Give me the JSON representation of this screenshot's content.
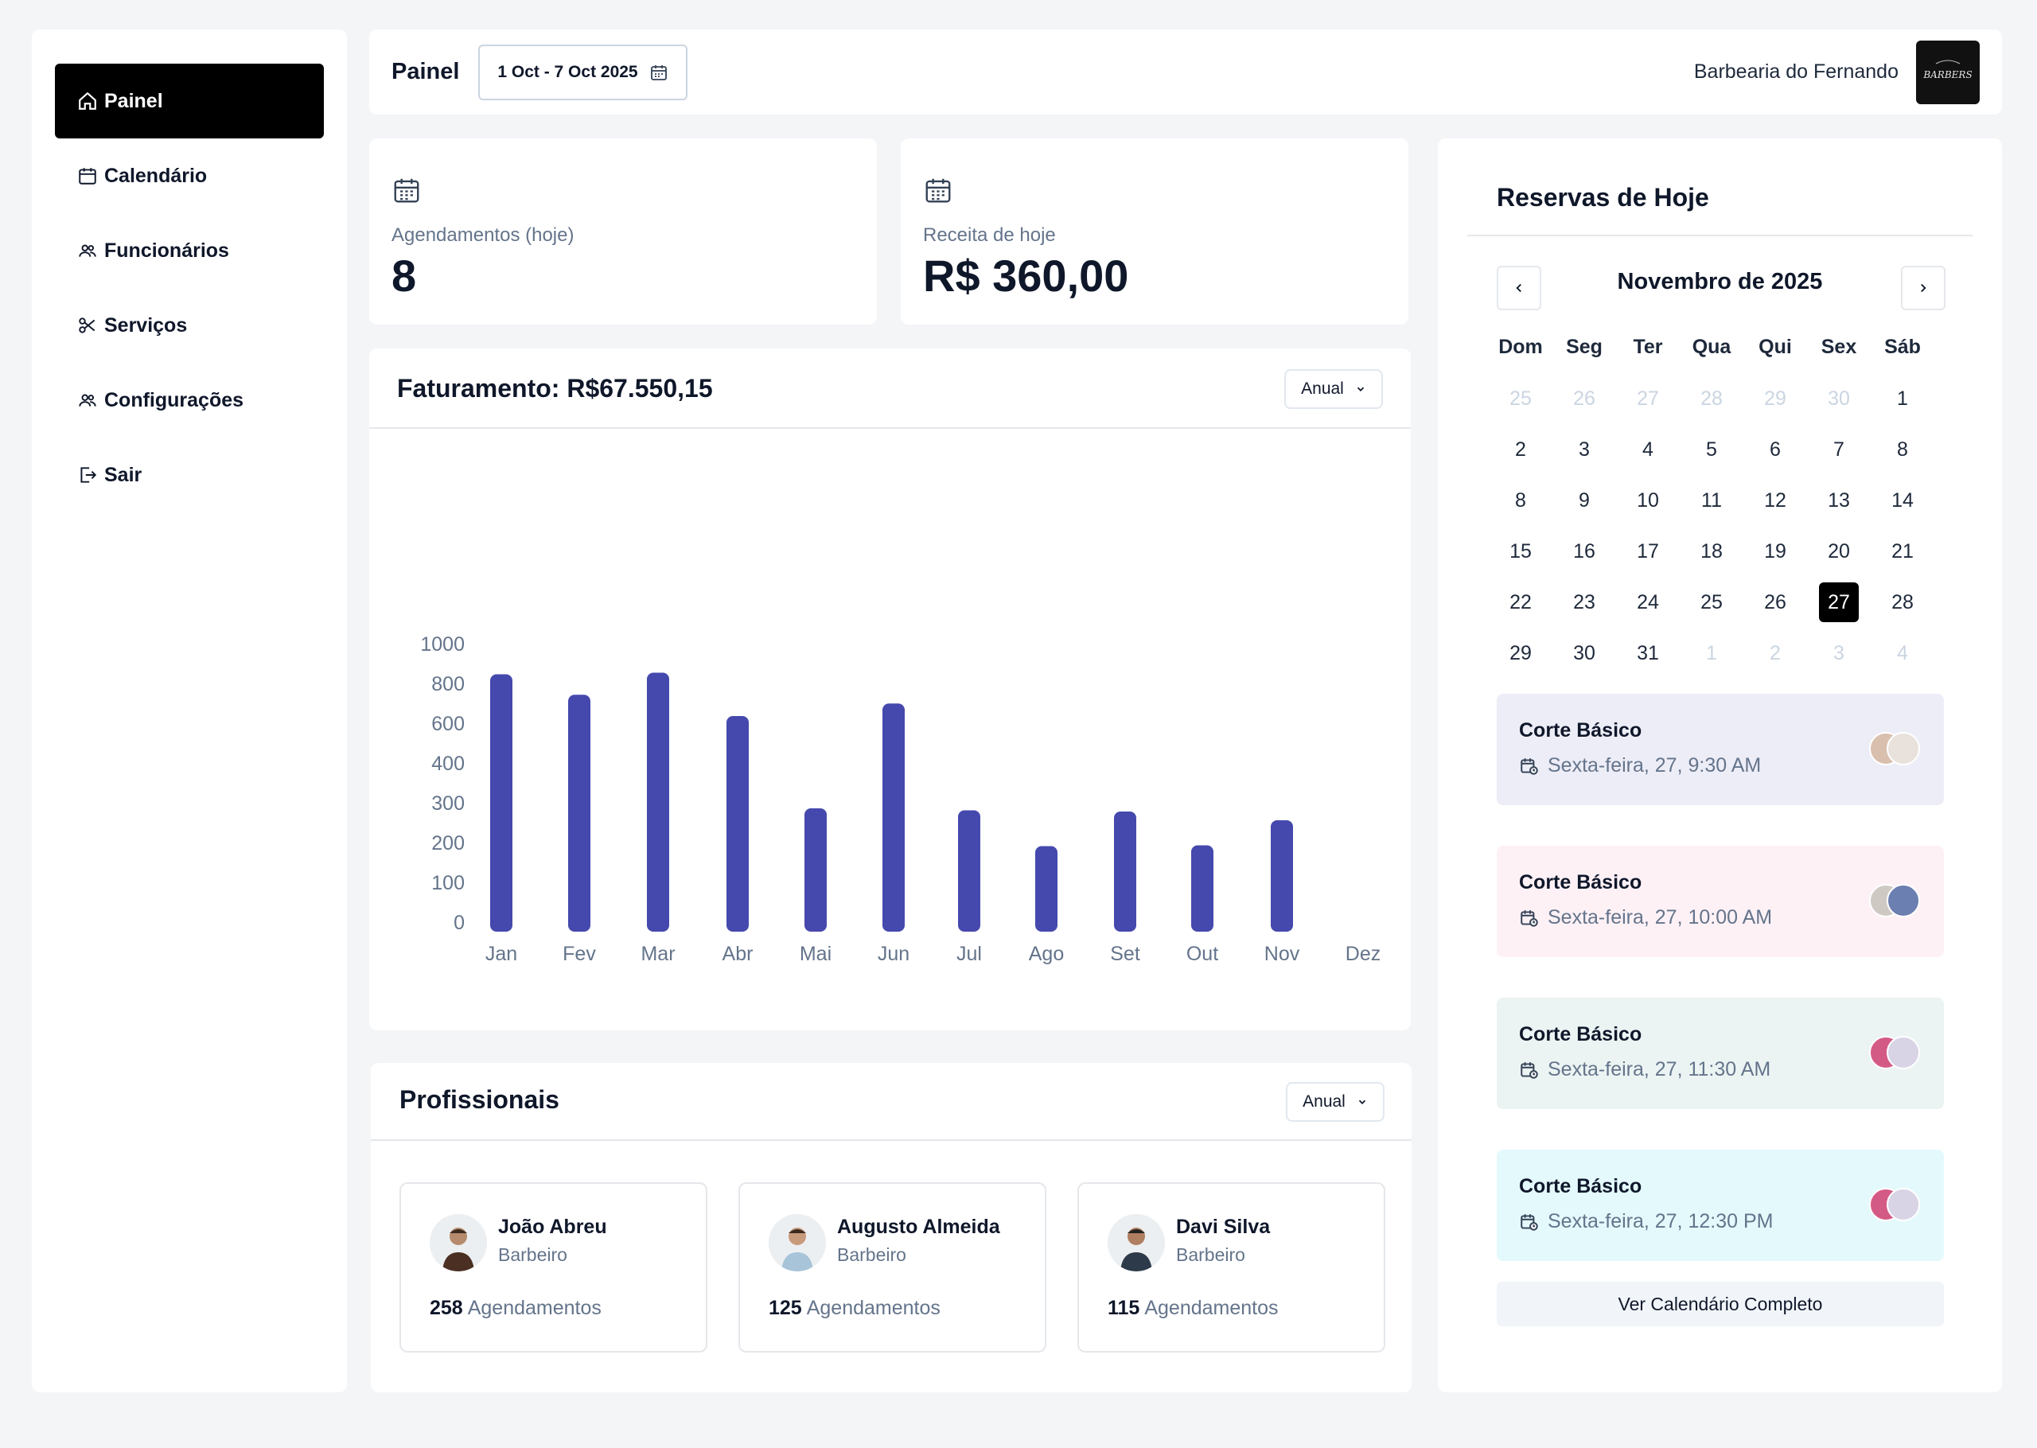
{
  "sidebar": {
    "items": [
      {
        "label": "Painel",
        "icon": "home-icon"
      },
      {
        "label": "Calendário",
        "icon": "calendar-icon"
      },
      {
        "label": "Funcionários",
        "icon": "users-icon"
      },
      {
        "label": "Serviços",
        "icon": "scissors-icon"
      },
      {
        "label": "Configurações",
        "icon": "users-icon"
      },
      {
        "label": "Sair",
        "icon": "logout-icon"
      }
    ]
  },
  "header": {
    "title": "Painel",
    "date_range": "1 Oct - 7 Oct 2025",
    "shop_name": "Barbearia do Fernando",
    "logo_text": "BARBERS"
  },
  "stats": {
    "appointments_label": "Agendamentos (hoje)",
    "appointments_value": "8",
    "revenue_label": "Receita de hoje",
    "revenue_value": "R$ 360,00"
  },
  "revenue_chart": {
    "title": "Faturamento: R$67.550,15",
    "period": "Anual"
  },
  "chart_data": {
    "type": "bar",
    "categories": [
      "Jan",
      "Fev",
      "Mar",
      "Abr",
      "Mai",
      "Jun",
      "Jul",
      "Ago",
      "Set",
      "Out",
      "Nov",
      "Dez"
    ],
    "values": [
      850,
      747,
      858,
      640,
      288,
      703,
      283,
      193,
      280,
      195,
      258,
      0
    ],
    "y_ticks": [
      "0",
      "100",
      "200",
      "300",
      "400",
      "600",
      "800",
      "1000"
    ],
    "bar_color": "#4549ad",
    "xlabel": "",
    "ylabel": "",
    "title": ""
  },
  "professionals": {
    "title": "Profissionais",
    "period": "Anual",
    "items": [
      {
        "name": "João Abreu",
        "role": "Barbeiro",
        "count": "258",
        "count_label": "Agendamentos"
      },
      {
        "name": "Augusto Almeida",
        "role": "Barbeiro",
        "count": "125",
        "count_label": "Agendamentos"
      },
      {
        "name": "Davi Silva",
        "role": "Barbeiro",
        "count": "115",
        "count_label": "Agendamentos"
      }
    ]
  },
  "bookings_panel": {
    "title": "Reservas de Hoje",
    "month": "Novembro de 2025",
    "weekdays": [
      "Dom",
      "Seg",
      "Ter",
      "Qua",
      "Qui",
      "Sex",
      "Sáb"
    ],
    "weeks": [
      [
        "25",
        "26",
        "27",
        "28",
        "29",
        "30",
        "1"
      ],
      [
        "2",
        "3",
        "4",
        "5",
        "6",
        "7",
        "8"
      ],
      [
        "8",
        "9",
        "10",
        "11",
        "12",
        "13",
        "14"
      ],
      [
        "15",
        "16",
        "17",
        "18",
        "19",
        "20",
        "21"
      ],
      [
        "22",
        "23",
        "24",
        "25",
        "26",
        "27",
        "28"
      ],
      [
        "29",
        "30",
        "31",
        "1",
        "2",
        "3",
        "4"
      ]
    ],
    "selected_day": "27",
    "bookings": [
      {
        "service": "Corte Básico",
        "when": "Sexta-feira, 27, 9:30 AM",
        "color": "#ededf7"
      },
      {
        "service": "Corte Básico",
        "when": "Sexta-feira, 27, 10:00 AM",
        "color": "#fdf1f6"
      },
      {
        "service": "Corte Básico",
        "when": "Sexta-feira, 27, 11:30 AM",
        "color": "#ebf4f3"
      },
      {
        "service": "Corte Básico",
        "when": "Sexta-feira, 27, 12:30 PM",
        "color": "#e4f9fc"
      }
    ],
    "full_calendar_label": "Ver Calendário Completo"
  }
}
